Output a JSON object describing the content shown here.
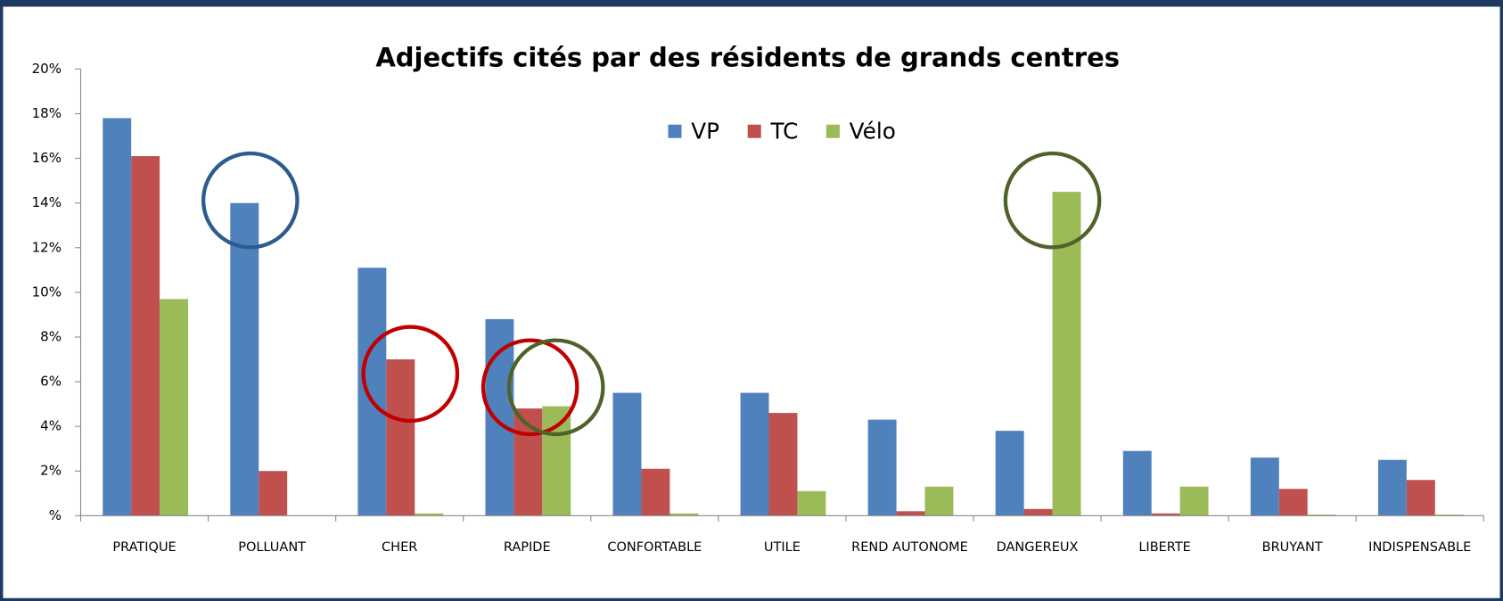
{
  "chart_data": {
    "type": "bar",
    "title": "Adjectifs cités par des résidents de grands centres",
    "categories": [
      "PRATIQUE",
      "POLLUANT",
      "CHER",
      "RAPIDE",
      "CONFORTABLE",
      "UTILE",
      "REND AUTONOME",
      "DANGEREUX",
      "LIBERTE",
      "BRUYANT",
      "INDISPENSABLE"
    ],
    "series": [
      {
        "name": "VP",
        "color": "#4f81bd",
        "values": [
          17.8,
          14.0,
          11.1,
          8.8,
          5.5,
          5.5,
          4.3,
          3.8,
          2.9,
          2.6,
          2.5
        ]
      },
      {
        "name": "TC",
        "color": "#c0504d",
        "values": [
          16.1,
          2.0,
          7.0,
          4.8,
          2.1,
          4.6,
          0.2,
          0.3,
          0.1,
          1.2,
          1.6
        ]
      },
      {
        "name": "Vélo",
        "color": "#9bbb59",
        "values": [
          9.7,
          0,
          0.1,
          4.9,
          0.1,
          1.1,
          1.3,
          14.5,
          1.3,
          0.05,
          0.05
        ]
      }
    ],
    "ylim": [
      0,
      20
    ],
    "yticks": [
      {
        "value": 0,
        "label": "%"
      },
      {
        "value": 2,
        "label": "2%"
      },
      {
        "value": 4,
        "label": "4%"
      },
      {
        "value": 6,
        "label": "6%"
      },
      {
        "value": 8,
        "label": "8%"
      },
      {
        "value": 10,
        "label": "10%"
      },
      {
        "value": 12,
        "label": "12%"
      },
      {
        "value": 14,
        "label": "14%"
      },
      {
        "value": 16,
        "label": "16%"
      },
      {
        "value": 18,
        "label": "18%"
      },
      {
        "value": 20,
        "label": "20%"
      }
    ],
    "legend": "top"
  }
}
